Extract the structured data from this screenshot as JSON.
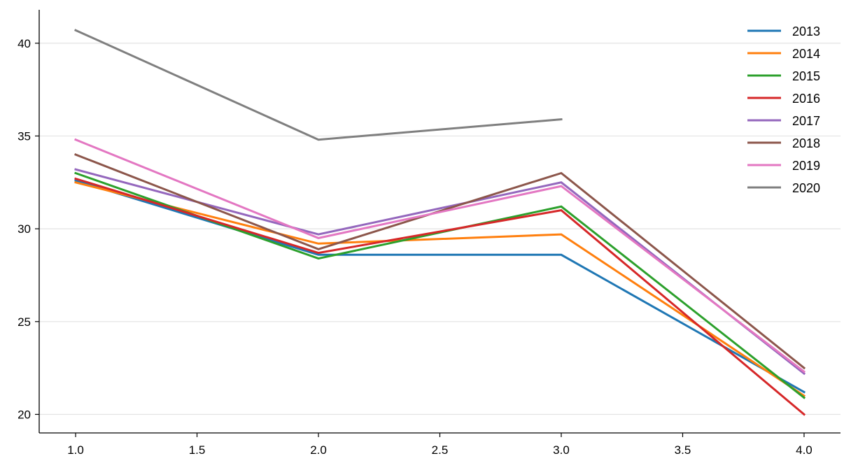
{
  "chart_data": {
    "type": "line",
    "title": "",
    "xlabel": "",
    "ylabel": "",
    "x": [
      1.0,
      2.0,
      3.0,
      4.0
    ],
    "xlim": [
      0.85,
      4.15
    ],
    "ylim": [
      19.0,
      41.8
    ],
    "xticks": [
      "1.0",
      "1.5",
      "2.0",
      "2.5",
      "3.0",
      "3.5",
      "4.0"
    ],
    "yticks": [
      "20",
      "25",
      "30",
      "35",
      "40"
    ],
    "grid": "horizontal",
    "legend_position": "top-right",
    "series": [
      {
        "name": "2013",
        "color": "#1f77b4",
        "values": [
          32.6,
          28.6,
          28.6,
          21.2
        ]
      },
      {
        "name": "2014",
        "color": "#ff7f0e",
        "values": [
          32.5,
          29.2,
          29.7,
          21.0
        ]
      },
      {
        "name": "2015",
        "color": "#2ca02c",
        "values": [
          33.0,
          28.4,
          31.2,
          20.9
        ]
      },
      {
        "name": "2016",
        "color": "#d62728",
        "values": [
          32.7,
          28.7,
          31.0,
          20.0
        ]
      },
      {
        "name": "2017",
        "color": "#9467bd",
        "values": [
          33.2,
          29.7,
          32.5,
          22.2
        ]
      },
      {
        "name": "2018",
        "color": "#8c564b",
        "values": [
          34.0,
          28.9,
          33.0,
          22.5
        ]
      },
      {
        "name": "2019",
        "color": "#e377c2",
        "values": [
          34.8,
          29.5,
          32.3,
          22.3
        ]
      },
      {
        "name": "2020",
        "color": "#7f7f7f",
        "values": [
          40.7,
          34.8,
          35.9,
          null
        ]
      }
    ]
  }
}
